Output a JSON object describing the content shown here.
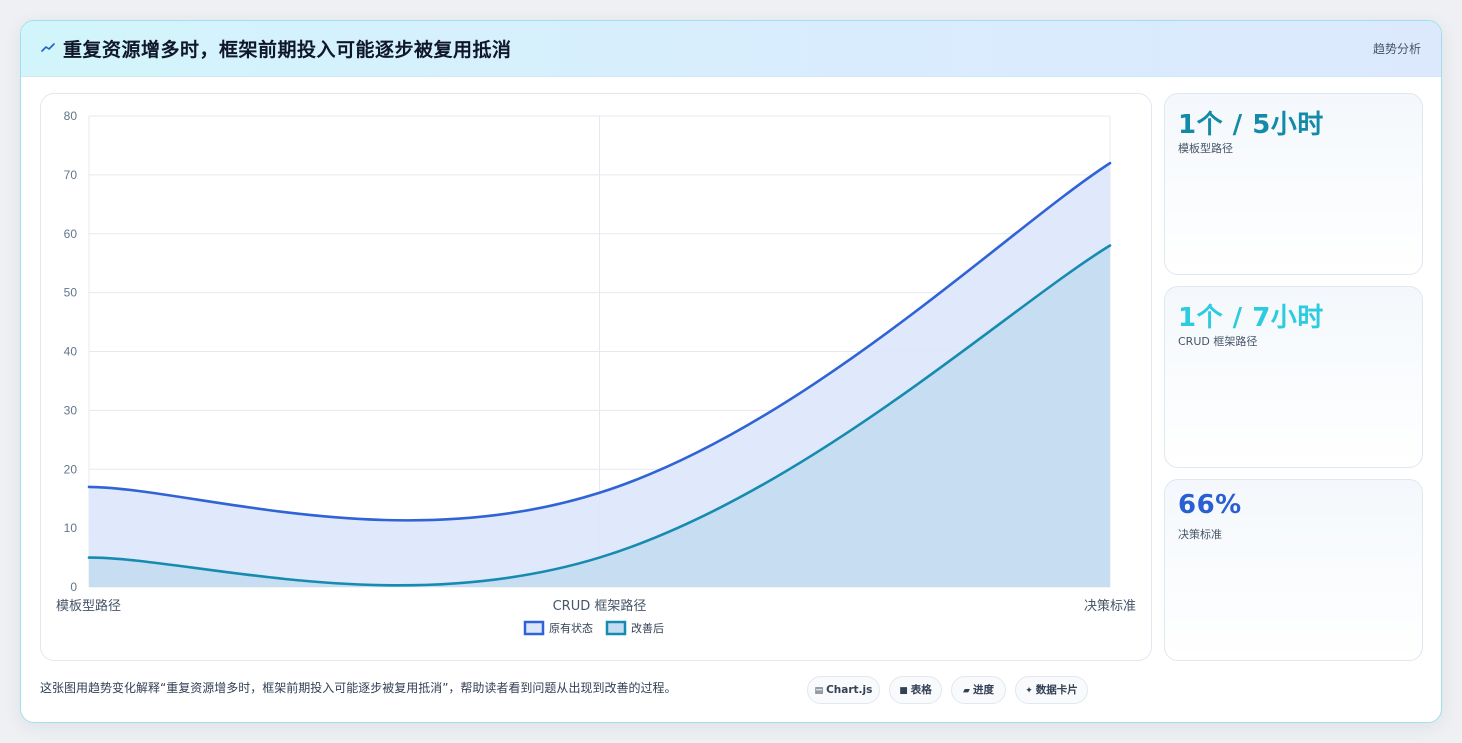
{
  "header": {
    "title": "重复资源增多时，框架前期投入可能逐步被复用抵消",
    "tag": "趋势分析",
    "icon": "trend-line-icon"
  },
  "chart_data": {
    "type": "area",
    "categories": [
      "模板型路径",
      "CRUD 框架路径",
      "决策标准"
    ],
    "series": [
      {
        "name": "原有状态",
        "values": [
          17,
          16,
          72
        ],
        "color": "#2f63d6",
        "fill": "#dde7fb"
      },
      {
        "name": "改善后",
        "values": [
          5,
          5,
          58
        ],
        "color": "#168bb0",
        "fill": "#c4dcf1"
      }
    ],
    "ylim": [
      0,
      80
    ],
    "yticks": [
      0,
      10,
      20,
      30,
      40,
      50,
      60,
      70,
      80
    ],
    "grid": true,
    "legend": "bottom"
  },
  "stats": [
    {
      "value": "1个 / 5小时",
      "label": "模板型路径",
      "color": "#128aa8"
    },
    {
      "value": "1个 / 7小时",
      "label": "CRUD 框架路径",
      "color": "#2ccbdf"
    },
    {
      "value": "66%",
      "label": "决策标准",
      "color": "#2a5fd3"
    }
  ],
  "footer": {
    "description": "这张图用趋势变化解释“重复资源增多时，框架前期投入可能逐步被复用抵消”，帮助读者看到问题从出现到改善的过程。"
  },
  "chips": [
    {
      "label": "Chart.js",
      "icon": "▤"
    },
    {
      "label": "表格",
      "icon": "■"
    },
    {
      "label": "进度",
      "icon": "▰"
    },
    {
      "label": "数据卡片",
      "icon": "✦"
    }
  ]
}
